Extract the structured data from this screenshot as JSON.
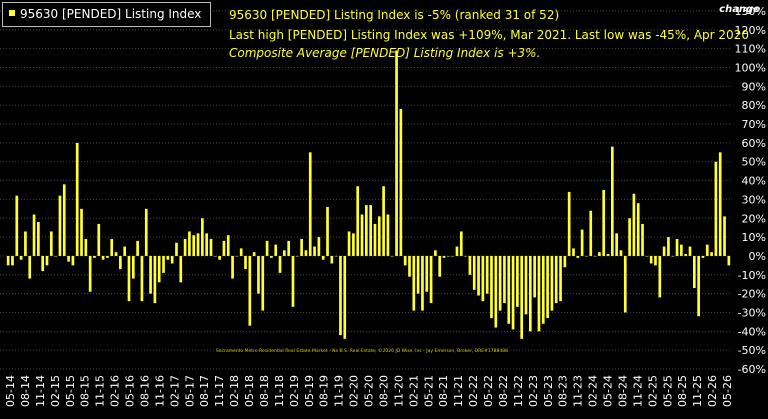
{
  "legend": {
    "label": "95630 [PENDED] Listing Index",
    "swatch_color": "#ffff33"
  },
  "annotations": {
    "line1": "95630 [PENDED] Listing Index is -5% (ranked 31 of 52)",
    "line2": "Last high [PENDED] Listing Index was +109%, Mar 2021. Last low was -45%, Apr 2020",
    "line3": "Composite Average [PENDED] Listing Index is +3%."
  },
  "axis_title": "change",
  "credit": "Sacramento Metro Residential Real Estate Market - No B.S. Real Estate, ©2026 JD Wise, Inc - Jay Emerson, Broker, DRE#1788488",
  "colors": {
    "background": "#000000",
    "bar": "#ffff33",
    "grid": "#444444",
    "text": "#ffffff"
  },
  "chart_data": {
    "type": "bar",
    "title": "",
    "xlabel": "",
    "ylabel": "change",
    "ylim": [
      -60,
      130
    ],
    "y_ticks": [
      "130%",
      "120%",
      "110%",
      "100%",
      "90%",
      "80%",
      "70%",
      "60%",
      "50%",
      "40%",
      "30%",
      "20%",
      "10%",
      "0%",
      "-10%",
      "-20%",
      "-30%",
      "-40%",
      "-50%",
      "-60%"
    ],
    "x_tick_labels": [
      "05-14",
      "08-14",
      "11-14",
      "02-15",
      "05-15",
      "08-15",
      "11-15",
      "02-16",
      "05-16",
      "08-16",
      "11-16",
      "02-17",
      "05-17",
      "08-17",
      "11-17",
      "02-18",
      "05-18",
      "08-18",
      "11-18",
      "02-19",
      "05-19",
      "08-19",
      "11-19",
      "02-20",
      "05-20",
      "08-20",
      "11-20",
      "02-21",
      "05-21",
      "08-21",
      "11-21",
      "02-22",
      "05-22",
      "08-22",
      "11-22",
      "02-23",
      "05-23",
      "08-23",
      "11-23",
      "02-24",
      "05-24",
      "08-24",
      "11-24",
      "02-25",
      "05-25",
      "08-25",
      "11-25",
      "02-26",
      "05-26"
    ],
    "series": [
      {
        "name": "95630 [PENDED] Listing Index",
        "values": [
          -5,
          -5,
          32,
          -2,
          13,
          -12,
          22,
          18,
          -8,
          -5,
          13,
          0,
          32,
          38,
          -3,
          -5,
          60,
          25,
          9,
          -19,
          -1,
          17,
          -2,
          -1,
          9,
          2,
          -7,
          5,
          -24,
          -12,
          8,
          -24,
          25,
          -20,
          -25,
          -14,
          -9,
          -2,
          -4,
          7,
          -14,
          9,
          13,
          11,
          12,
          20,
          12,
          9,
          0,
          -2,
          8,
          11,
          -12,
          0,
          4,
          -7,
          -37,
          2,
          -20,
          -29,
          8,
          -1,
          6,
          -9,
          3,
          8,
          -27,
          0,
          9,
          3,
          55,
          5,
          10,
          -2,
          26,
          -4,
          0,
          -42,
          -44,
          13,
          12,
          37,
          22,
          27,
          27,
          17,
          21,
          37,
          22,
          0,
          109,
          78,
          -5,
          -11,
          -29,
          -20,
          -29,
          -19,
          -25,
          3,
          -11,
          -1,
          0,
          0,
          5,
          13,
          0,
          -10,
          -18,
          -21,
          -24,
          -20,
          -33,
          -38,
          -29,
          -25,
          -36,
          -39,
          -27,
          -44,
          -31,
          -40,
          -22,
          -40,
          -36,
          -33,
          -29,
          -25,
          -24,
          -6,
          34,
          4,
          -1,
          14,
          0,
          24,
          0,
          2,
          35,
          1,
          58,
          12,
          3,
          -30,
          20,
          33,
          28,
          17,
          0,
          -4,
          -5,
          -22,
          5,
          10,
          0,
          9,
          6,
          1,
          5,
          -17,
          -32,
          -1,
          6,
          2,
          50,
          55,
          21,
          -5
        ]
      }
    ],
    "grid": true,
    "legend_position": "top-left"
  }
}
